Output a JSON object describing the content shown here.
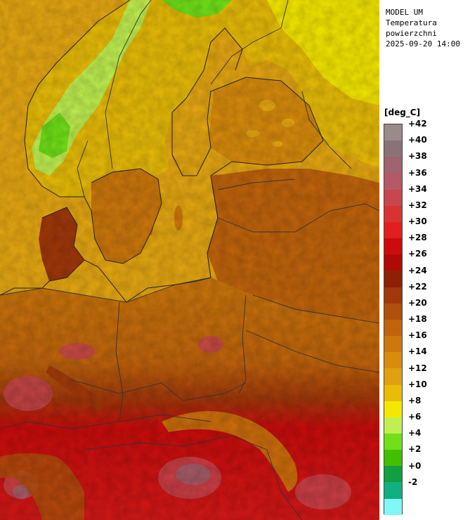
{
  "header": {
    "model": "MODEL UM",
    "variable_line1": "Temperatura",
    "variable_line2": "powierzchni",
    "datetime": "2025-09-20 14:00"
  },
  "legend": {
    "unit": "[deg_C]",
    "labels": [
      "+42",
      "+40",
      "+38",
      "+36",
      "+34",
      "+32",
      "+30",
      "+28",
      "+26",
      "+24",
      "+22",
      "+20",
      "+18",
      "+16",
      "+14",
      "+12",
      "+10",
      "+8",
      "+6",
      "+4",
      "+2",
      "+0",
      "-2"
    ],
    "colors_top_to_bottom": [
      "#9a8a8a",
      "#8a7378",
      "#9e6470",
      "#b45a66",
      "#c8464e",
      "#d83232",
      "#e21e1e",
      "#cc0c0c",
      "#b00a08",
      "#8e2006",
      "#a0380a",
      "#b0500c",
      "#c0640c",
      "#cc780c",
      "#d88c0c",
      "#e0a010",
      "#e8bc08",
      "#f4e800",
      "#c0f050",
      "#70e018",
      "#40c000",
      "#10a040",
      "#10b080",
      "#80f8f8"
    ]
  },
  "map": {
    "sea_color": "#e6a812",
    "border_color": "#333333"
  }
}
